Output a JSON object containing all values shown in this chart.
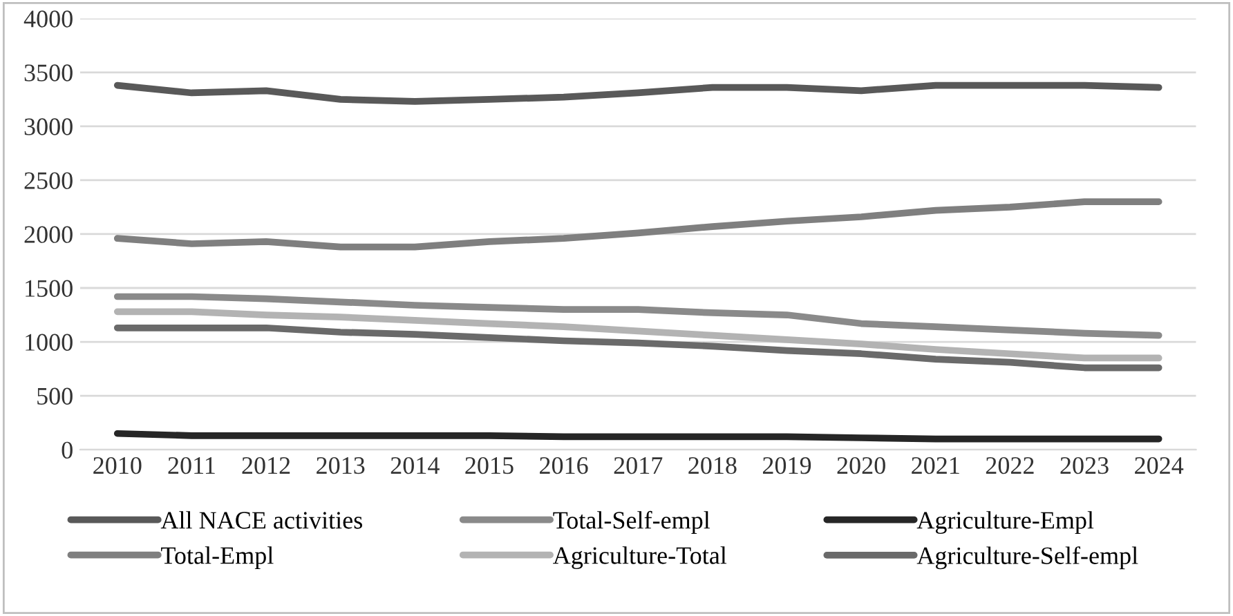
{
  "chart_data": {
    "type": "line",
    "categories": [
      "2010",
      "2011",
      "2012",
      "2013",
      "2014",
      "2015",
      "2016",
      "2017",
      "2018",
      "2019",
      "2020",
      "2021",
      "2022",
      "2023",
      "2024"
    ],
    "series": [
      {
        "name": "All NACE activities",
        "color": "#595959",
        "values": [
          3380,
          3310,
          3330,
          3250,
          3230,
          3250,
          3270,
          3310,
          3360,
          3360,
          3330,
          3380,
          3380,
          3380,
          3360
        ]
      },
      {
        "name": "Total-Empl",
        "color": "#7f7f7f",
        "values": [
          1960,
          1910,
          1930,
          1880,
          1880,
          1930,
          1960,
          2010,
          2070,
          2120,
          2160,
          2220,
          2250,
          2300,
          2300
        ]
      },
      {
        "name": "Total-Self-empl",
        "color": "#8a8a8a",
        "values": [
          1420,
          1420,
          1400,
          1370,
          1340,
          1320,
          1300,
          1300,
          1270,
          1250,
          1170,
          1140,
          1110,
          1080,
          1060
        ]
      },
      {
        "name": "Agriculture-Total",
        "color": "#b3b3b3",
        "values": [
          1280,
          1280,
          1250,
          1230,
          1200,
          1170,
          1140,
          1100,
          1060,
          1020,
          980,
          930,
          890,
          850,
          850
        ]
      },
      {
        "name": "Agriculture-Empl",
        "color": "#262626",
        "values": [
          150,
          130,
          130,
          130,
          130,
          130,
          120,
          120,
          120,
          120,
          110,
          100,
          100,
          100,
          100
        ]
      },
      {
        "name": "Agriculture-Self-empl",
        "color": "#6a6a6a",
        "values": [
          1130,
          1130,
          1130,
          1090,
          1070,
          1040,
          1010,
          990,
          960,
          920,
          890,
          840,
          810,
          760,
          760
        ]
      }
    ],
    "ylim": [
      0,
      4000
    ],
    "yticks": [
      0,
      500,
      1000,
      1500,
      2000,
      2500,
      3000,
      3500,
      4000
    ],
    "grid": "y",
    "legend": "bottom",
    "marker": "none",
    "line_style": "solid"
  }
}
